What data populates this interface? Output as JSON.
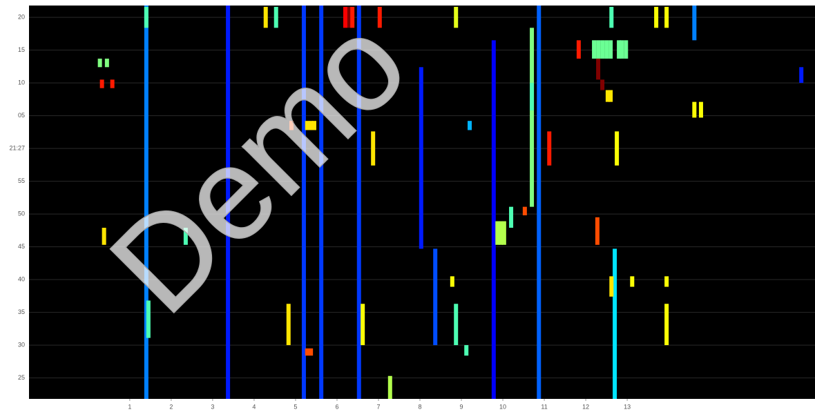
{
  "chart_data": {
    "type": "heatmap",
    "watermark": "Demo",
    "xlim": [
      -1.43,
      17.53
    ],
    "xticks": [
      1,
      2,
      3,
      4,
      5,
      6,
      7,
      8,
      9,
      10,
      11,
      12,
      13
    ],
    "ylim": [
      -38.2,
      21.8
    ],
    "yticks": [
      20,
      15,
      10,
      {
        "value": 5,
        "label": "05"
      },
      {
        "value": 0,
        "label": "21:27"
      },
      {
        "value": -5,
        "label": "55"
      },
      {
        "value": -10,
        "label": "50"
      },
      {
        "value": -15,
        "label": "45"
      },
      {
        "value": -20,
        "label": "40"
      },
      {
        "value": -25,
        "label": "35"
      },
      {
        "value": -30,
        "label": "30"
      },
      {
        "value": -35,
        "label": "25"
      }
    ],
    "grid": true,
    "cells": [
      [
        1.4,
        21.8,
        -38.2,
        0.25
      ],
      [
        3.37,
        21.8,
        -38.2,
        0.15
      ],
      [
        5.2,
        21.8,
        -38.2,
        0.18
      ],
      [
        5.62,
        21.8,
        -38.2,
        0.18
      ],
      [
        6.53,
        21.8,
        -38.2,
        0.18
      ],
      [
        8.03,
        12.4,
        -15.3,
        0.15
      ],
      [
        8.37,
        -15.3,
        -30,
        0.2
      ],
      [
        9.78,
        16.5,
        -38.2,
        0.12
      ],
      [
        10.87,
        21.8,
        -38.2,
        0.22
      ],
      [
        12.7,
        -15.3,
        -38.2,
        0.35
      ],
      [
        14.62,
        21.8,
        16.5,
        0.25
      ],
      [
        17.2,
        12.4,
        10,
        0.15
      ],
      [
        1.4,
        21.6,
        18.4,
        0.45
      ],
      [
        1.45,
        -23.2,
        -28.9,
        0.45
      ],
      [
        2.35,
        -12.1,
        -14.7,
        0.45
      ],
      [
        0.38,
        -12.1,
        -14.7,
        0.65
      ],
      [
        0.28,
        13.7,
        12.4,
        0.5
      ],
      [
        0.45,
        13.7,
        12.4,
        0.5
      ],
      [
        0.33,
        10.5,
        9.2,
        0.85
      ],
      [
        0.58,
        10.5,
        9.2,
        0.85
      ],
      [
        4.28,
        21.6,
        18.4,
        0.65
      ],
      [
        4.53,
        21.6,
        18.4,
        0.45
      ],
      [
        6.2,
        21.6,
        18.4,
        0.88
      ],
      [
        6.3,
        21.6,
        18.4,
        1.0
      ],
      [
        6.37,
        21.6,
        18.4,
        0.85
      ],
      [
        7.03,
        21.6,
        18.4,
        0.85
      ],
      [
        8.87,
        21.6,
        18.4,
        0.6
      ],
      [
        6.87,
        2.6,
        -2.6,
        0.65
      ],
      [
        4.9,
        4.2,
        2.8,
        0.8
      ],
      [
        5.28,
        4.2,
        2.8,
        0.65
      ],
      [
        5.37,
        4.2,
        2.8,
        0.65
      ],
      [
        5.45,
        4.2,
        2.8,
        0.65
      ],
      [
        4.83,
        -23.7,
        -30,
        0.65
      ],
      [
        6.62,
        -23.7,
        -30,
        0.62
      ],
      [
        5.28,
        -30.5,
        -31.6,
        0.8
      ],
      [
        5.37,
        -30.5,
        -31.6,
        0.8
      ],
      [
        7.28,
        -34.7,
        -38.2,
        0.55
      ],
      [
        8.87,
        -23.7,
        -30,
        0.45
      ],
      [
        9.12,
        -30,
        -31.6,
        0.45
      ],
      [
        8.78,
        -19.5,
        -21.1,
        0.62
      ],
      [
        9.2,
        4.2,
        2.8,
        0.3
      ],
      [
        9.87,
        -11.1,
        -14.7,
        0.55
      ],
      [
        9.95,
        -11.1,
        -14.7,
        0.55
      ],
      [
        10.03,
        -11.1,
        -14.7,
        0.55
      ],
      [
        10.2,
        -8.9,
        -12.1,
        0.45
      ],
      [
        10.53,
        -8.9,
        -10.2,
        0.8
      ],
      [
        10.7,
        18.4,
        -8.9,
        0.5
      ],
      [
        10.7,
        10,
        5.8,
        0.45
      ],
      [
        11.12,
        2.6,
        -2.6,
        0.85
      ],
      [
        12.2,
        16.5,
        13.7,
        0.48
      ],
      [
        12.3,
        16.5,
        13.7,
        0.48
      ],
      [
        12.4,
        16.5,
        13.7,
        0.48
      ],
      [
        12.5,
        16.5,
        13.7,
        0.48
      ],
      [
        12.6,
        16.5,
        13.7,
        0.48
      ],
      [
        12.8,
        16.5,
        13.7,
        0.48
      ],
      [
        12.87,
        16.5,
        13.7,
        0.48
      ],
      [
        12.97,
        16.5,
        13.7,
        0.48
      ],
      [
        12.3,
        13.7,
        10.5,
        1.0
      ],
      [
        12.4,
        10.5,
        8.9,
        1.0
      ],
      [
        12.53,
        8.9,
        7.1,
        0.65
      ],
      [
        12.6,
        8.9,
        7.1,
        0.65
      ],
      [
        12.62,
        21.6,
        18.4,
        0.45
      ],
      [
        11.83,
        16.5,
        13.7,
        0.85
      ],
      [
        12.28,
        -10.5,
        -14.7,
        0.8
      ],
      [
        12.62,
        -19.5,
        -22.6,
        0.65
      ],
      [
        12.75,
        2.6,
        -2.6,
        0.62
      ],
      [
        13.12,
        -19.5,
        -21.1,
        0.62
      ],
      [
        13.7,
        21.6,
        18.4,
        0.62
      ],
      [
        13.95,
        21.6,
        18.4,
        0.62
      ],
      [
        13.95,
        -23.7,
        -30,
        0.62
      ],
      [
        13.95,
        -19.5,
        -21.1,
        0.62
      ],
      [
        14.62,
        7.1,
        4.7,
        0.62
      ],
      [
        14.78,
        7.1,
        4.7,
        0.62
      ]
    ]
  }
}
